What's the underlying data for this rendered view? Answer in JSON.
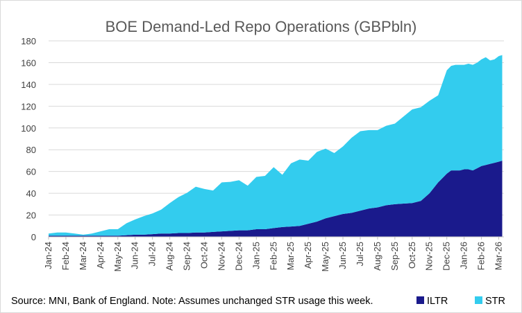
{
  "chart_data": {
    "type": "area",
    "stacked": true,
    "title": "BOE Demand-Led Repo Operations (GBPbln)",
    "xlabel": "",
    "ylabel": "",
    "ylim": [
      0,
      180
    ],
    "yticks": [
      0,
      20,
      40,
      60,
      80,
      100,
      120,
      140,
      160,
      180
    ],
    "x_tick_labels": [
      "Jan-24",
      "Feb-24",
      "Mar-24",
      "Apr-24",
      "May-24",
      "Jun-24",
      "Jul-24",
      "Aug-24",
      "Sep-24",
      "Oct-24",
      "Nov-24",
      "Dec-24",
      "Jan-25",
      "Feb-25",
      "Mar-25",
      "Apr-25",
      "May-25",
      "Jun-25",
      "Jul-25",
      "Aug-25",
      "Sep-25",
      "Oct-25",
      "Nov-25",
      "Dec-25",
      "Jan-26",
      "Feb-26",
      "Mar-26"
    ],
    "x_range_months": [
      0,
      26.3
    ],
    "x": [
      0,
      0.5,
      1,
      1.5,
      2,
      2.5,
      3,
      3.5,
      4,
      4.5,
      5,
      5.5,
      6,
      6.5,
      7,
      7.5,
      8,
      8.5,
      9,
      9.5,
      10,
      10.5,
      11,
      11.5,
      12,
      12.5,
      13,
      13.5,
      14,
      14.5,
      15,
      15.5,
      16,
      16.5,
      17,
      17.5,
      18,
      18.5,
      19,
      19.5,
      20,
      20.5,
      21,
      21.5,
      22,
      22.5,
      23,
      23.25,
      23.5,
      23.75,
      24,
      24.25,
      24.5,
      24.75,
      25,
      25.25,
      25.5,
      25.75,
      26,
      26.2
    ],
    "grid": true,
    "legend": "bottom-right",
    "series": [
      {
        "name": "ILTR",
        "color": "#1a1a8c",
        "values": [
          1,
          1,
          1,
          1,
          1,
          1,
          1,
          1,
          1,
          1.5,
          2,
          2,
          2.5,
          3,
          3,
          3.5,
          3.5,
          4,
          4,
          4.5,
          5,
          5.5,
          6,
          6,
          7,
          7,
          8,
          9,
          9.5,
          10,
          12,
          14,
          17,
          19,
          21,
          22,
          24,
          26,
          27,
          29,
          30,
          30.5,
          31,
          33,
          40,
          50,
          58,
          61,
          61,
          61,
          62,
          62,
          61,
          63,
          65,
          66,
          67,
          68,
          69,
          70
        ]
      },
      {
        "name": "STR",
        "color": "#33ccee",
        "values": [
          2,
          3,
          3,
          2,
          1,
          2,
          4,
          6,
          6,
          11,
          14,
          17,
          19,
          22,
          28,
          33,
          37,
          42,
          40,
          38,
          45,
          45,
          46,
          41,
          48,
          49,
          56,
          48,
          58,
          61,
          58,
          64,
          64,
          58,
          62,
          69,
          73,
          72,
          71,
          73,
          74,
          80,
          86,
          86,
          85,
          80,
          95,
          96,
          97,
          97,
          96,
          97,
          97,
          97,
          98,
          99,
          95,
          95,
          97,
          97
        ]
      }
    ]
  },
  "footer": {
    "source_note": "Source: MNI, Bank of England. Note: Assumes unchanged STR usage this week.",
    "legend": [
      {
        "label": "ILTR",
        "color": "#1a1a8c"
      },
      {
        "label": "STR",
        "color": "#33ccee"
      }
    ]
  }
}
